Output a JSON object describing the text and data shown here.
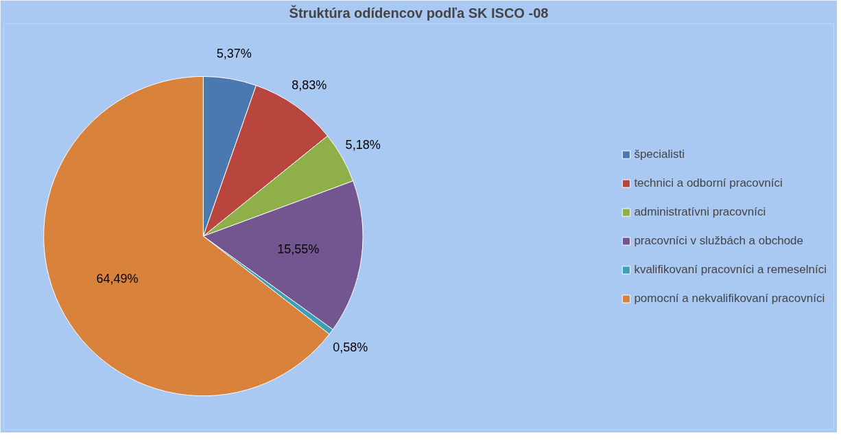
{
  "chart_data": {
    "type": "pie",
    "title": "Štruktúra odídencov podľa SK ISCO -08",
    "categories": [
      "špecialisti",
      "technici a odborní pracovníci",
      "administratívni pracovníci",
      "pracovníci v službách a obchode",
      "kvalifikovaní pracovníci a remeselníci",
      "pomocní a nekvalifikovaní pracovníci"
    ],
    "values": [
      5.37,
      8.83,
      5.18,
      15.55,
      0.58,
      64.49
    ],
    "value_labels": [
      "5,37%",
      "8,83%",
      "5,18%",
      "15,55%",
      "0,58%",
      "64,49%"
    ],
    "colors": [
      "#4a78b0",
      "#b8463f",
      "#8fb049",
      "#73568f",
      "#3f9fb8",
      "#d9823b"
    ],
    "legend": "right"
  }
}
